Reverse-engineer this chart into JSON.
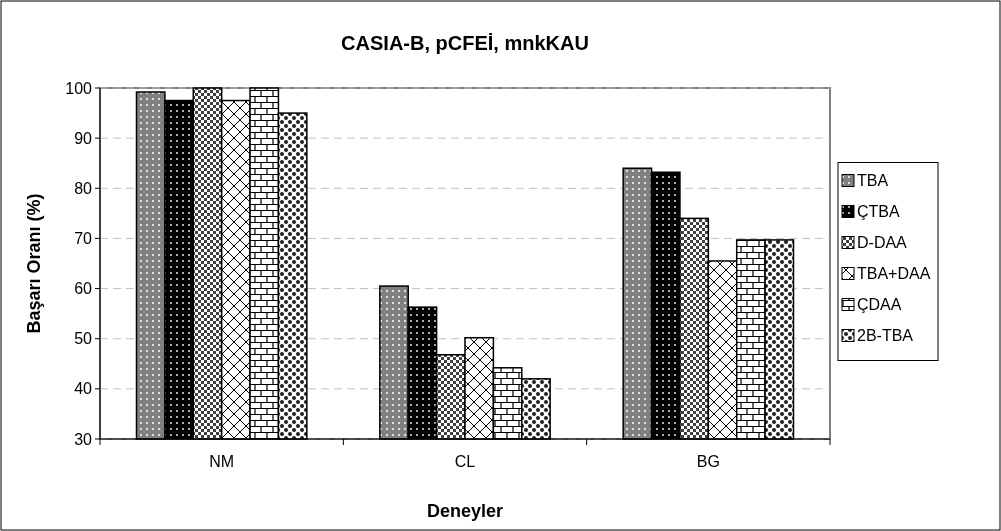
{
  "chart_data": {
    "type": "bar",
    "title": "CASIA-B, pCFEİ, mnkKAU",
    "xlabel": "Deneyler",
    "ylabel": "Başarı Oranı (%)",
    "categories": [
      "NM",
      "CL",
      "BG"
    ],
    "series": [
      {
        "name": "TBA",
        "values": [
          99.2,
          60.5,
          84
        ]
      },
      {
        "name": "ÇTBA",
        "values": [
          97.5,
          56.3,
          83.2
        ]
      },
      {
        "name": "D-DAA",
        "values": [
          100,
          46.8,
          74
        ]
      },
      {
        "name": "TBA+DAA",
        "values": [
          97.5,
          50.2,
          65.5
        ]
      },
      {
        "name": "ÇDAA",
        "values": [
          100,
          44.2,
          69.7
        ]
      },
      {
        "name": "2B-TBA",
        "values": [
          95,
          42,
          69.7
        ]
      }
    ],
    "ylim": [
      30,
      100
    ],
    "yticks": [
      30,
      40,
      50,
      60,
      70,
      80,
      90,
      100
    ],
    "grid": "y",
    "legend": "right"
  }
}
